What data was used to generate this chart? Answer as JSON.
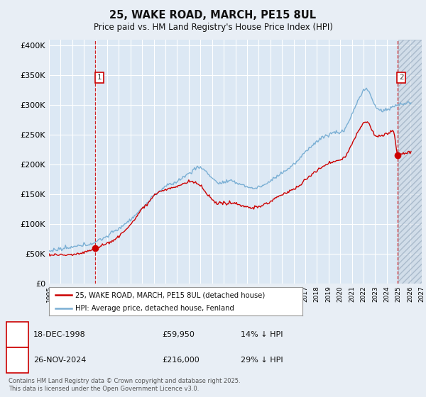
{
  "title_line1": "25, WAKE ROAD, MARCH, PE15 8UL",
  "title_line2": "Price paid vs. HM Land Registry's House Price Index (HPI)",
  "background_color": "#e8eef5",
  "plot_background": "#dce8f4",
  "grid_color": "#ffffff",
  "red_line_color": "#cc0000",
  "blue_line_color": "#7aafd4",
  "ylim": [
    0,
    410000
  ],
  "yticks": [
    0,
    50000,
    100000,
    150000,
    200000,
    250000,
    300000,
    350000,
    400000
  ],
  "ytick_labels": [
    "£0",
    "£50K",
    "£100K",
    "£150K",
    "£200K",
    "£250K",
    "£300K",
    "£350K",
    "£400K"
  ],
  "xmin": 1995,
  "xmax": 2027,
  "ann1_x": 1998.97,
  "ann1_y": 59950,
  "ann1_label": "1",
  "ann1_date": "18-DEC-1998",
  "ann1_price": "£59,950",
  "ann1_hpi": "14% ↓ HPI",
  "ann2_x": 2024.9,
  "ann2_y": 216000,
  "ann2_label": "2",
  "ann2_date": "26-NOV-2024",
  "ann2_price": "£216,000",
  "ann2_hpi": "29% ↓ HPI",
  "legend_red": "25, WAKE ROAD, MARCH, PE15 8UL (detached house)",
  "legend_blue": "HPI: Average price, detached house, Fenland",
  "footnote": "Contains HM Land Registry data © Crown copyright and database right 2025.\nThis data is licensed under the Open Government Licence v3.0."
}
